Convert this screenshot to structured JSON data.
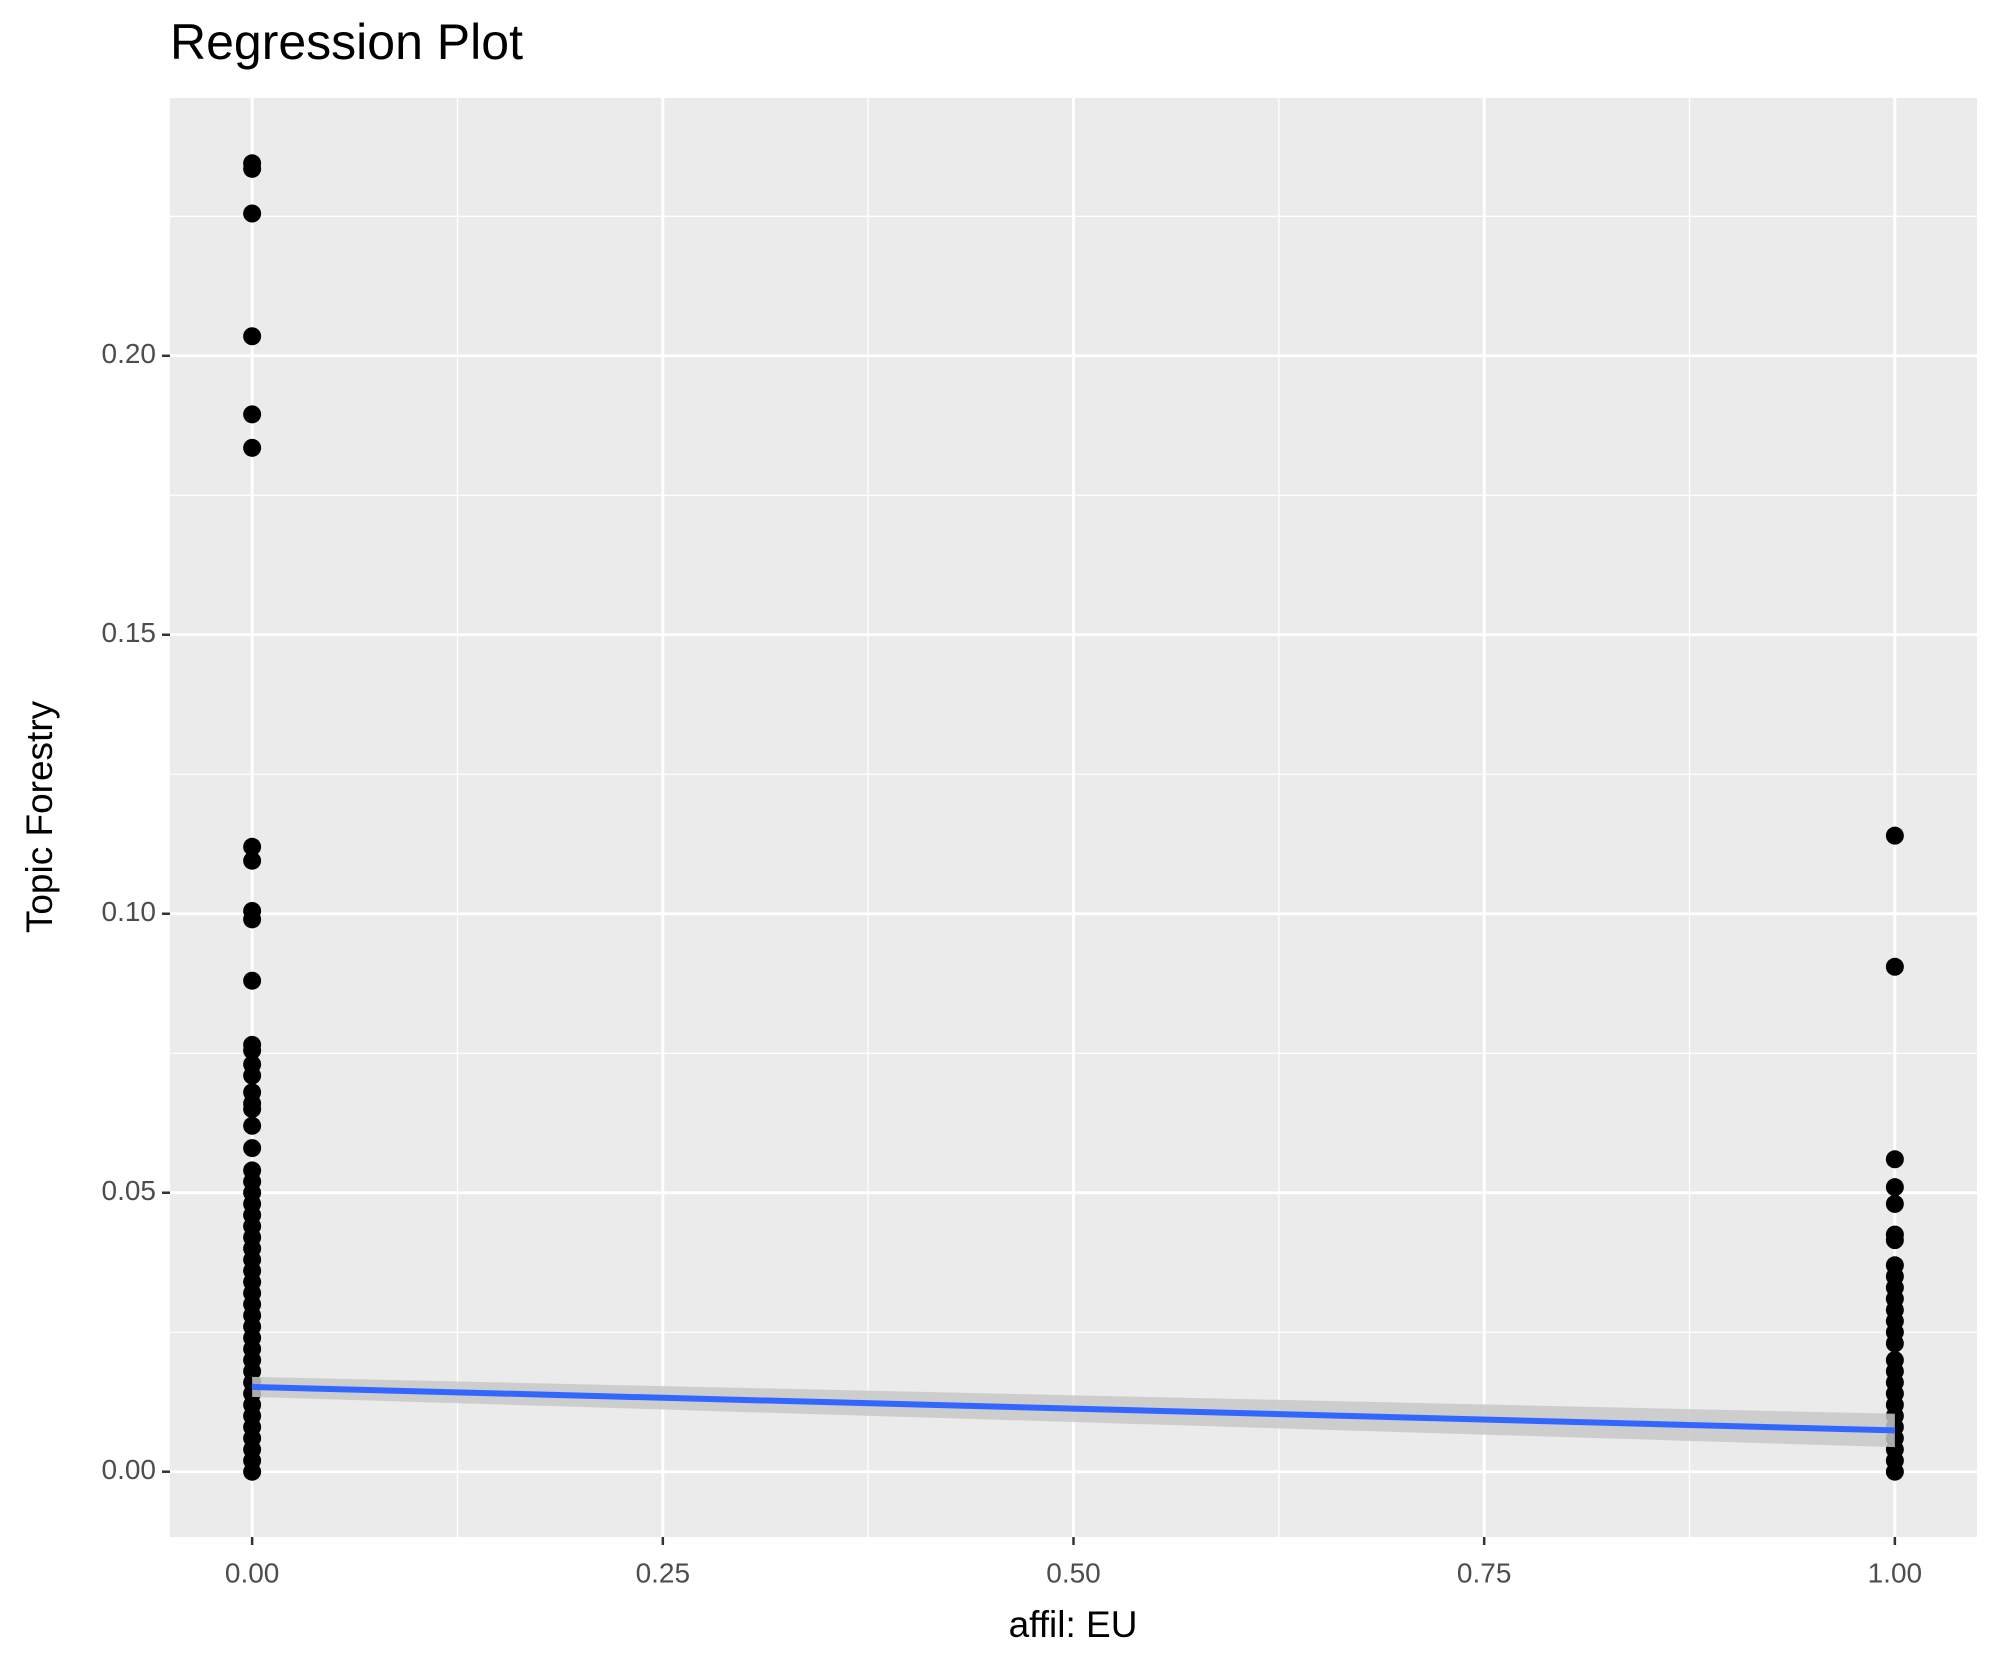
{
  "chart_data": {
    "type": "scatter",
    "title": "Regression Plot",
    "x_label": "affil: EU",
    "y_label": "Topic Forestry",
    "x": [
      0,
      0,
      0,
      0,
      0,
      0,
      0,
      0,
      0,
      0,
      0,
      0,
      0,
      0,
      0,
      0,
      0,
      0,
      0,
      0,
      0,
      0,
      0,
      0,
      0,
      0,
      0,
      0,
      0,
      0,
      0,
      0,
      0,
      0,
      0,
      0,
      0,
      0,
      0,
      0,
      0,
      0,
      0,
      0,
      0,
      0,
      0,
      0,
      1,
      1,
      1,
      1,
      1,
      1,
      1,
      1,
      1,
      1,
      1,
      1,
      1,
      1,
      1,
      1,
      1,
      1,
      1,
      1,
      1,
      1,
      1,
      1,
      1,
      1
    ],
    "values": [
      0.2345,
      0.2335,
      0.2255,
      0.2035,
      0.1895,
      0.1835,
      0.112,
      0.1095,
      0.1005,
      0.099,
      0.088,
      0.0765,
      0.0755,
      0.073,
      0.071,
      0.068,
      0.066,
      0.065,
      0.062,
      0.058,
      0.054,
      0.052,
      0.05,
      0.048,
      0.046,
      0.044,
      0.042,
      0.04,
      0.038,
      0.036,
      0.034,
      0.032,
      0.03,
      0.028,
      0.026,
      0.024,
      0.022,
      0.02,
      0.018,
      0.016,
      0.014,
      0.012,
      0.01,
      0.008,
      0.006,
      0.004,
      0.002,
      0,
      0.114,
      0.0905,
      0.056,
      0.051,
      0.048,
      0.0425,
      0.0415,
      0.037,
      0.035,
      0.033,
      0.031,
      0.029,
      0.027,
      0.025,
      0.023,
      0.02,
      0.018,
      0.016,
      0.014,
      0.012,
      0.01,
      0.008,
      0.006,
      0.004,
      0.002,
      0
    ],
    "color": "#000000",
    "trend": {
      "x": [
        0,
        1
      ],
      "values": [
        0.0152,
        0.0074
      ],
      "lower": [
        0.0134,
        0.0044
      ],
      "upper": [
        0.017,
        0.0104
      ],
      "color": "#3366ff",
      "band_color": "#c8c8c8"
    },
    "xlim": [
      -0.05,
      1.05
    ],
    "ylim": [
      -0.0117,
      0.2462
    ],
    "xticks": [
      {
        "value": 0,
        "label": "0.00"
      },
      {
        "value": 0.25,
        "label": "0.25"
      },
      {
        "value": 0.5,
        "label": "0.50"
      },
      {
        "value": 0.75,
        "label": "0.75"
      },
      {
        "value": 1,
        "label": "1.00"
      }
    ],
    "yticks": [
      {
        "value": 0,
        "label": "0.00"
      },
      {
        "value": 0.05,
        "label": "0.05"
      },
      {
        "value": 0.1,
        "label": "0.10"
      },
      {
        "value": 0.15,
        "label": "0.15"
      },
      {
        "value": 0.2,
        "label": "0.20"
      }
    ],
    "xminorticks": [
      0.125,
      0.375,
      0.625,
      0.875
    ],
    "yminorticks": [
      0.025,
      0.075,
      0.125,
      0.175,
      0.225
    ],
    "grid": true
  }
}
